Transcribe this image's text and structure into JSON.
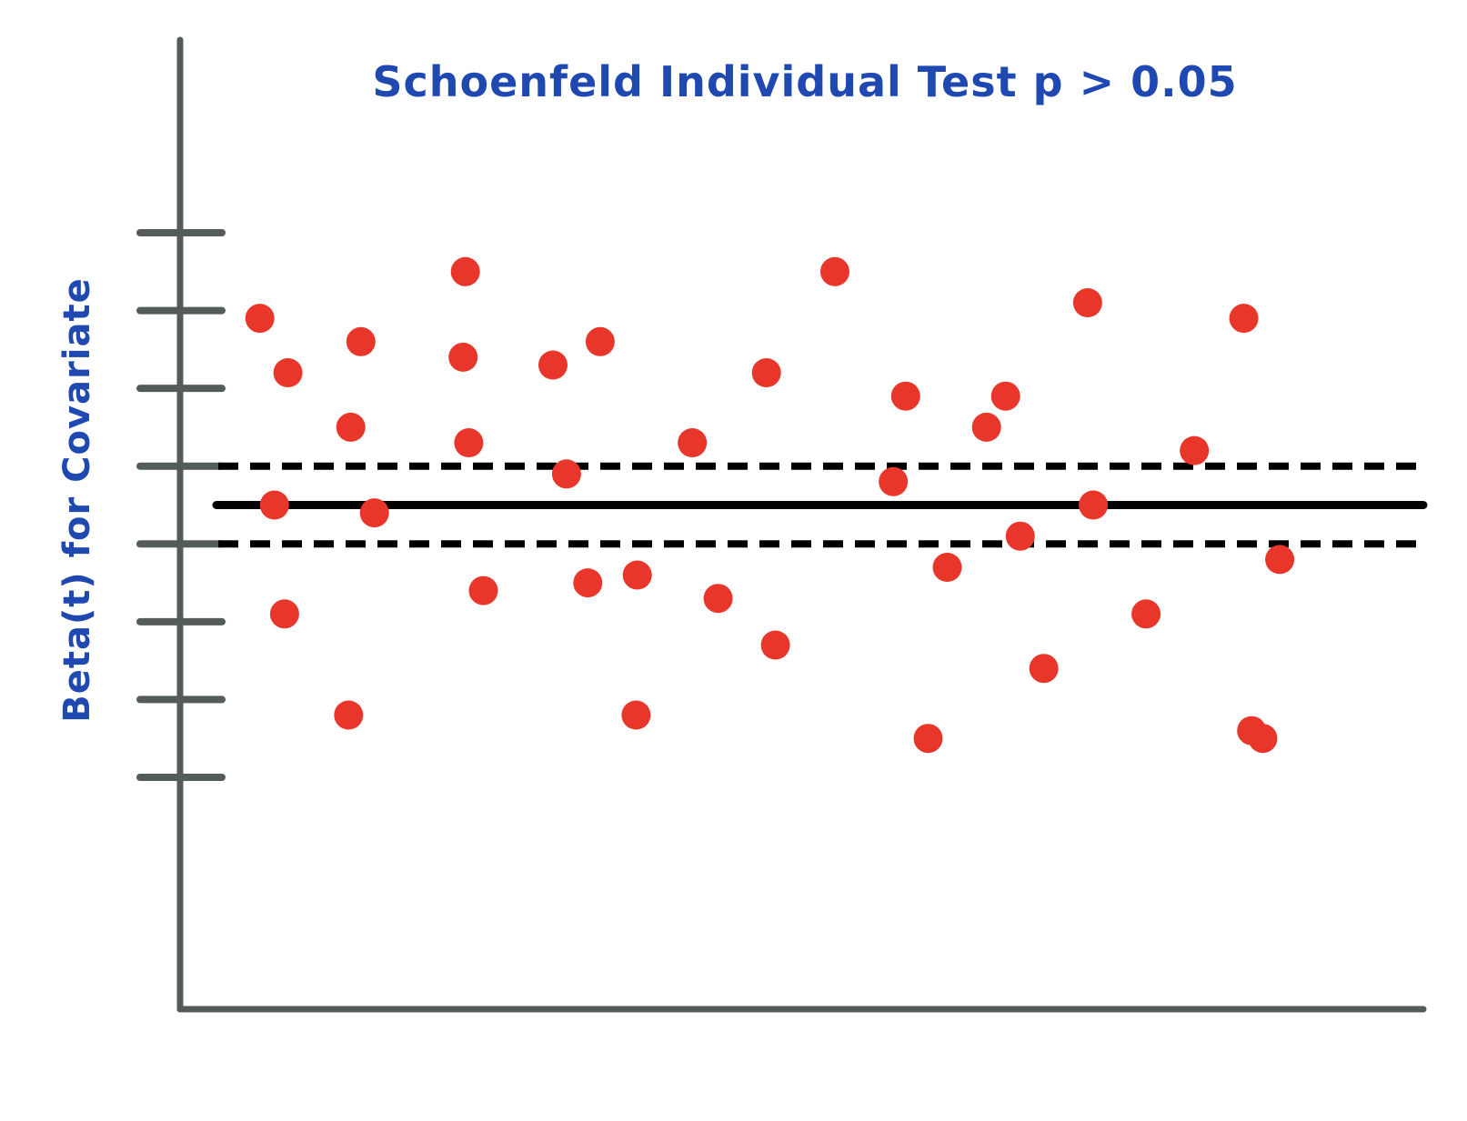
{
  "chart_data": {
    "type": "scatter",
    "title": "Schoenfeld Individual Test p > 0.05",
    "xlabel": "",
    "ylabel": "Beta(t) for Covariate",
    "xlim": [
      0,
      100
    ],
    "ylim": [
      0,
      10
    ],
    "y_ticks": [
      3,
      4,
      5,
      6,
      7,
      8,
      9,
      10
    ],
    "grid": false,
    "series": [
      {
        "x": [
          3.7,
          6.2,
          5.0,
          5.9,
          11.8,
          13.9,
          12.7,
          11.6,
          22.0,
          21.8,
          22.3,
          23.6,
          29.8,
          31.0,
          34.0,
          32.9,
          37.3,
          37.2,
          42.2,
          48.8,
          44.5,
          49.6,
          54.9,
          61.2,
          63.2,
          60.1,
          64.9,
          68.4,
          71.4,
          73.5,
          70.1,
          77.4,
          77.9,
          82.6,
          86.9,
          91.3,
          93.0,
          94.5,
          92.0
        ],
        "y": [
          8.9,
          8.2,
          6.5,
          5.1,
          7.5,
          6.4,
          8.6,
          3.8,
          9.5,
          8.4,
          7.3,
          5.4,
          8.3,
          6.9,
          8.6,
          5.5,
          5.6,
          3.8,
          7.3,
          8.2,
          5.3,
          4.7,
          9.5,
          7.9,
          3.5,
          6.8,
          5.7,
          7.5,
          6.1,
          4.4,
          7.9,
          9.1,
          6.5,
          5.1,
          7.2,
          8.9,
          3.5,
          5.8,
          3.6
        ]
      }
    ],
    "reference_lines": {
      "center": 6.5,
      "upper": 7.0,
      "lower": 6.0
    },
    "colors": {
      "points": "#e8372a",
      "axis": "#545c5b",
      "reference": "#000000",
      "text": "#1f48b0"
    }
  }
}
